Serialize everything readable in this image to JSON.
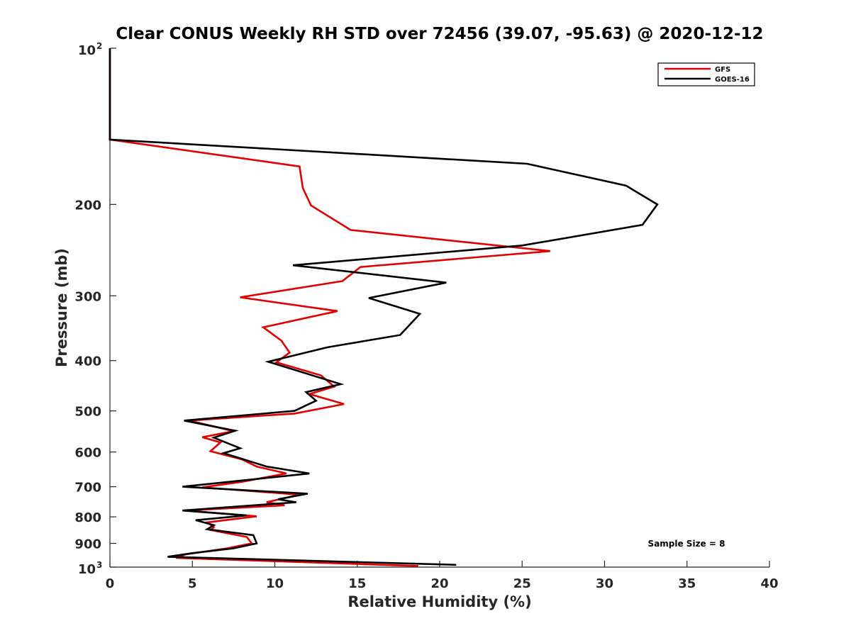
{
  "chart_data": {
    "type": "line",
    "title": "Clear CONUS Weekly RH STD over 72456 (39.07, -95.63) @ 2020-12-12",
    "xlabel": "Relative Humidity (%)",
    "ylabel": "Pressure (mb)",
    "xlim": [
      0,
      40
    ],
    "ylim": [
      100,
      1000
    ],
    "yscale": "log",
    "yreversed": true,
    "xticks": [
      0,
      5,
      10,
      15,
      20,
      25,
      30,
      35,
      40
    ],
    "xtick_labels": [
      "0",
      "5",
      "10",
      "15",
      "20",
      "25",
      "30",
      "35",
      "40"
    ],
    "yticks": [
      {
        "value": 100,
        "base": "10",
        "exp": "2"
      },
      {
        "value": 200,
        "label": "200"
      },
      {
        "value": 300,
        "label": "300"
      },
      {
        "value": 400,
        "label": "400"
      },
      {
        "value": 500,
        "label": "500"
      },
      {
        "value": 600,
        "label": "600"
      },
      {
        "value": 700,
        "label": "700"
      },
      {
        "value": 800,
        "label": "800"
      },
      {
        "value": 900,
        "label": "900"
      },
      {
        "value": 1000,
        "base": "10",
        "exp": "3"
      }
    ],
    "legend_position": "top-right",
    "annotation": "Sample Size = 8",
    "series": [
      {
        "name": "GFS",
        "color": "#e00000",
        "points": [
          [
            0,
            100
          ],
          [
            0,
            150
          ],
          [
            11.5,
            169
          ],
          [
            11.7,
            186
          ],
          [
            12.2,
            201
          ],
          [
            14.6,
            224
          ],
          [
            26.7,
            246
          ],
          [
            15.2,
            264
          ],
          [
            14.1,
            281
          ],
          [
            7.9,
            302
          ],
          [
            13.8,
            321
          ],
          [
            9.3,
            345
          ],
          [
            10.4,
            366
          ],
          [
            10.9,
            386
          ],
          [
            10.1,
            403
          ],
          [
            12.8,
            427
          ],
          [
            13.6,
            449
          ],
          [
            12.1,
            464
          ],
          [
            14.2,
            485
          ],
          [
            11.2,
            506
          ],
          [
            4.8,
            522
          ],
          [
            7.5,
            547
          ],
          [
            5.6,
            562
          ],
          [
            6.7,
            575
          ],
          [
            6.1,
            598
          ],
          [
            8.0,
            620
          ],
          [
            8.9,
            640
          ],
          [
            10.7,
            660
          ],
          [
            8.0,
            685
          ],
          [
            5.6,
            702
          ],
          [
            11.5,
            725
          ],
          [
            9.5,
            750
          ],
          [
            10.6,
            760
          ],
          [
            4.6,
            778
          ],
          [
            8.9,
            798
          ],
          [
            5.9,
            820
          ],
          [
            6.3,
            838
          ],
          [
            6.1,
            848
          ],
          [
            8.3,
            875
          ],
          [
            8.6,
            900
          ],
          [
            7.1,
            920
          ],
          [
            4.6,
            945
          ],
          [
            4.0,
            960
          ],
          [
            18.7,
            995
          ]
        ]
      },
      {
        "name": "GOES-16",
        "color": "#000000",
        "points": [
          [
            0,
            100
          ],
          [
            0,
            150
          ],
          [
            25.3,
            167
          ],
          [
            31.3,
            184
          ],
          [
            33.2,
            200
          ],
          [
            32.3,
            219
          ],
          [
            25.0,
            240
          ],
          [
            11.1,
            262
          ],
          [
            20.4,
            283
          ],
          [
            15.7,
            303
          ],
          [
            18.8,
            325
          ],
          [
            17.6,
            357
          ],
          [
            13.2,
            377
          ],
          [
            9.6,
            402
          ],
          [
            14.0,
            444
          ],
          [
            11.9,
            460
          ],
          [
            12.5,
            478
          ],
          [
            11.2,
            500
          ],
          [
            4.5,
            522
          ],
          [
            7.6,
            546
          ],
          [
            6.3,
            563
          ],
          [
            7.9,
            590
          ],
          [
            6.9,
            603
          ],
          [
            9.5,
            640
          ],
          [
            12.1,
            660
          ],
          [
            4.4,
            700
          ],
          [
            12.0,
            722
          ],
          [
            10.2,
            740
          ],
          [
            11.3,
            750
          ],
          [
            4.4,
            778
          ],
          [
            8.3,
            795
          ],
          [
            5.2,
            812
          ],
          [
            6.3,
            830
          ],
          [
            5.9,
            845
          ],
          [
            8.7,
            868
          ],
          [
            8.9,
            900
          ],
          [
            7.5,
            920
          ],
          [
            5.0,
            940
          ],
          [
            3.5,
            955
          ],
          [
            21.0,
            990
          ]
        ]
      }
    ]
  }
}
